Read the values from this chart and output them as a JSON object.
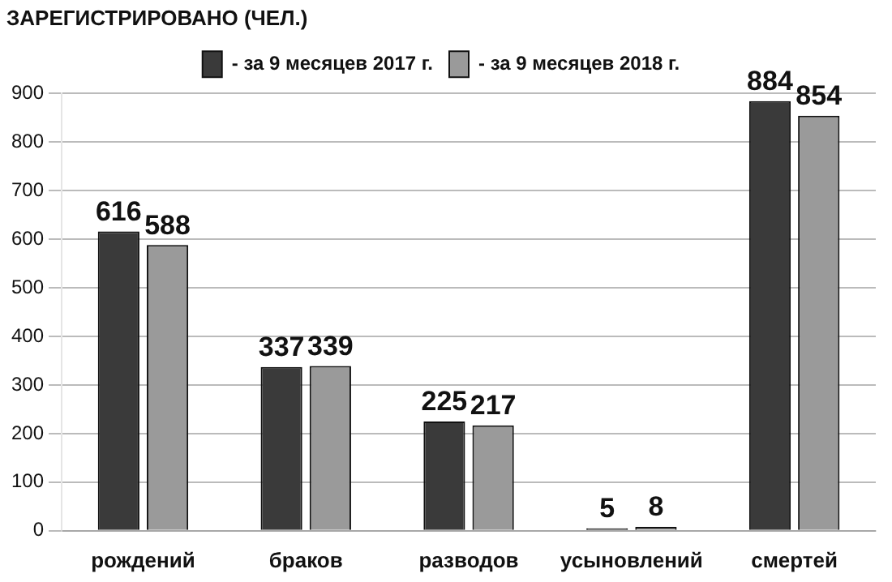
{
  "chart_data": {
    "type": "bar",
    "title": "ЗАРЕГИСТРИРОВАНО (ЧЕЛ.)",
    "categories": [
      "рождений",
      "браков",
      "разводов",
      "усыновлений",
      "смертей"
    ],
    "series": [
      {
        "name": "- за 9 месяцев 2017 г.",
        "color": "#3a3a3a",
        "values": [
          616,
          337,
          225,
          5,
          884
        ]
      },
      {
        "name": "- за 9 месяцев 2018 г.",
        "color": "#9a9a9a",
        "values": [
          588,
          339,
          217,
          8,
          854
        ]
      }
    ],
    "ylim": [
      0,
      900
    ],
    "yticks": [
      0,
      100,
      200,
      300,
      400,
      500,
      600,
      700,
      800,
      900
    ],
    "grid": "y",
    "legend": "top",
    "data_labels": true
  }
}
